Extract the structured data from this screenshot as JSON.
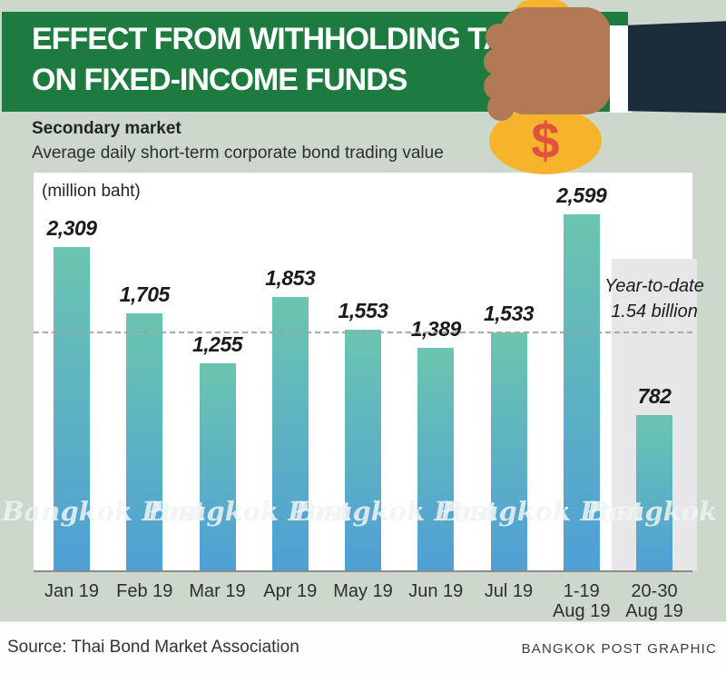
{
  "header": {
    "title_line1": "EFFECT FROM WITHHOLDING TAX",
    "title_line2": "ON FIXED-INCOME FUNDS"
  },
  "subtitle": {
    "bold": "Secondary market",
    "regular": "Average daily short-term corporate bond trading value"
  },
  "chart_data": {
    "type": "bar",
    "title": "Secondary market",
    "subtitle": "Average daily short-term corporate bond trading value",
    "unit_label": "(million baht)",
    "categories": [
      "Jan 19",
      "Feb 19",
      "Mar 19",
      "Apr 19",
      "May 19",
      "Jun 19",
      "Jul 19",
      "1-19\nAug 19",
      "20-30\nAug 19"
    ],
    "values": [
      2309,
      1705,
      1255,
      1853,
      1553,
      1389,
      1533,
      2599,
      782
    ],
    "value_labels": [
      "2,309",
      "1,705",
      "1,255",
      "1,853",
      "1,553",
      "1,389",
      "1,533",
      "2,599",
      "782"
    ],
    "average_line": {
      "value": 1540,
      "label_line1": "Year-to-date",
      "label_line2": "1.54 billion"
    },
    "highlight_index": 8,
    "ylim": [
      0,
      2800
    ],
    "grid": false,
    "legend_position": "none",
    "bar_color_top": "#6bc5af",
    "bar_color_bottom": "#4f9fd5"
  },
  "watermark": {
    "text": "Bangkok Post"
  },
  "illustration": {
    "dollar_sign": "$"
  },
  "footer": {
    "source": "Source: Thai Bond Market Association",
    "credit": "BANGKOK POST GRAPHIC"
  },
  "colors": {
    "background": "#ccd8cb",
    "banner_green": "#1e7b40",
    "title_white": "#ffffff",
    "bar_top_teal": "#6bc5af",
    "bar_bottom_blue": "#4f9fd5",
    "average_line_gray": "#a0a0a0",
    "highlight_box_gray": "#e7e7e9",
    "bag_yellow": "#f6b32c",
    "dollar_red": "#e0523e",
    "hand_skin": "#b17a54",
    "suit_navy": "#1d2c3a",
    "text_dark": "#2d2d2d"
  }
}
